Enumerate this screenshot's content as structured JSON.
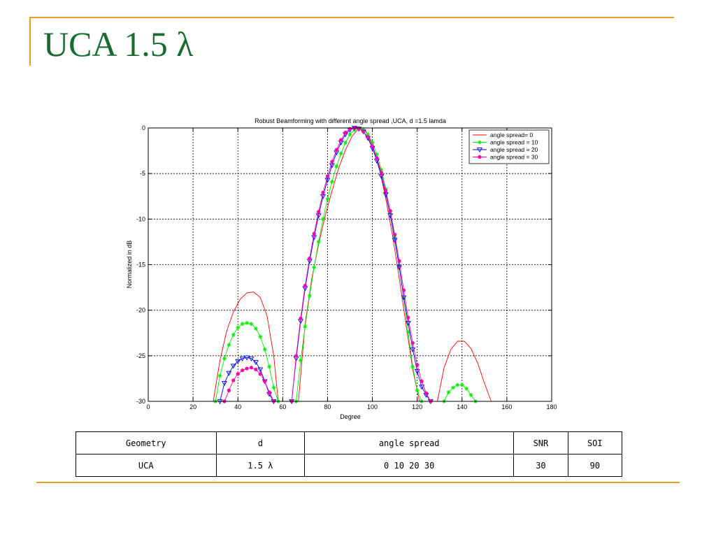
{
  "slide": {
    "title": "UCA 1.5 λ"
  },
  "chart_data": {
    "type": "line",
    "title": "Robust Beamforming with different angle spread ,UCA, d =1.5 lamda",
    "xlabel": "Degree",
    "ylabel": "Normalized in dB",
    "xlim": [
      0,
      180
    ],
    "ylim": [
      -30,
      0
    ],
    "xticks": [
      0,
      20,
      40,
      60,
      80,
      100,
      120,
      140,
      160,
      180
    ],
    "yticks": [
      0,
      -5,
      -10,
      -15,
      -20,
      -25,
      -30
    ],
    "grid": true,
    "legend_position": "top-right",
    "series": [
      {
        "name": "angle spread= 0",
        "color": "#ff0000",
        "marker": "none",
        "x": [
          29,
          32,
          35,
          38,
          41,
          44,
          47,
          50,
          53,
          56,
          58
        ],
        "y": [
          -30,
          -25.5,
          -22.3,
          -20.2,
          -18.8,
          -18.1,
          -18,
          -18.6,
          -20.6,
          -25,
          -30
        ],
        "x2": [
          67,
          70,
          73,
          76,
          79,
          82,
          85,
          88,
          91,
          94,
          97,
          100,
          103,
          106,
          109,
          112,
          115,
          118,
          121
        ],
        "y2": [
          -30,
          -21.5,
          -16.5,
          -12.8,
          -9.6,
          -6.9,
          -4.4,
          -2.4,
          -0.9,
          0,
          -0.3,
          -1.8,
          -4.3,
          -7.8,
          -11.8,
          -16.5,
          -21.5,
          -26.5,
          -30
        ],
        "x3": [
          129,
          132,
          135,
          138,
          141,
          144,
          147,
          150,
          153
        ],
        "y3": [
          -30,
          -26.3,
          -24.3,
          -23.4,
          -23.4,
          -24.2,
          -25.8,
          -28,
          -30
        ]
      },
      {
        "name": "angle spread = 10",
        "color": "#00ee00",
        "marker": "star",
        "x": [
          30,
          32,
          34,
          36,
          38,
          40,
          42,
          44,
          46,
          48,
          50,
          52,
          54,
          56,
          58
        ],
        "y": [
          -30,
          -27.2,
          -25.3,
          -23.8,
          -22.7,
          -21.9,
          -21.5,
          -21.4,
          -21.5,
          -22,
          -22.9,
          -24.3,
          -26.2,
          -28.5,
          -30
        ],
        "x2": [
          66,
          68,
          70,
          72,
          74,
          76,
          78,
          80,
          82,
          84,
          86,
          88,
          90,
          92,
          94,
          96,
          98,
          100,
          102,
          104,
          106,
          108,
          110,
          112,
          114,
          116,
          118,
          120,
          122
        ],
        "y2": [
          -30,
          -25.5,
          -21.8,
          -18.4,
          -15.3,
          -12.5,
          -10,
          -7.8,
          -5.9,
          -4.2,
          -2.8,
          -1.6,
          -0.7,
          -0.2,
          0,
          -0.2,
          -0.7,
          -1.6,
          -2.9,
          -4.6,
          -6.7,
          -9.2,
          -12,
          -15.2,
          -18.7,
          -22.4,
          -26.2,
          -28.8,
          -30
        ],
        "x3": [
          132,
          134,
          136,
          138,
          140,
          142,
          144,
          146
        ],
        "y3": [
          -30,
          -29,
          -28.5,
          -28.2,
          -28.2,
          -28.6,
          -29.3,
          -30
        ]
      },
      {
        "name": "angle spread = 20",
        "color": "#0000ff",
        "marker": "triangle",
        "x": [
          32,
          34,
          36,
          38,
          40,
          42,
          44,
          46,
          48,
          50,
          52,
          54,
          56
        ],
        "y": [
          -30,
          -28,
          -26.9,
          -26.1,
          -25.6,
          -25.3,
          -25.2,
          -25.3,
          -25.7,
          -26.5,
          -27.8,
          -29.2,
          -30
        ],
        "x2": [
          64,
          66,
          68,
          70,
          72,
          74,
          76,
          78,
          80,
          82,
          84,
          86,
          88,
          90,
          92,
          94,
          96,
          98,
          100,
          102,
          104,
          106,
          108,
          110,
          112,
          114,
          116,
          118,
          120,
          122,
          124,
          126
        ],
        "y2": [
          -30,
          -25.3,
          -21.2,
          -17.6,
          -14.6,
          -12,
          -9.6,
          -7.5,
          -5.7,
          -4.1,
          -2.7,
          -1.6,
          -0.7,
          -0.2,
          0,
          -0.1,
          -0.4,
          -1.1,
          -2.2,
          -3.6,
          -5.3,
          -7.3,
          -9.6,
          -12.3,
          -15.3,
          -18.6,
          -21.4,
          -24.3,
          -26.7,
          -28.4,
          -29.3,
          -30
        ],
        "x3": [],
        "y3": []
      },
      {
        "name": "angle spread = 30",
        "color": "#ff00aa",
        "marker": "dot",
        "x": [
          34,
          36,
          38,
          40,
          42,
          44,
          46,
          48,
          50,
          52,
          54,
          56
        ],
        "y": [
          -30,
          -28.8,
          -27.7,
          -27,
          -26.6,
          -26.4,
          -26.3,
          -26.5,
          -27,
          -27.8,
          -29,
          -30
        ],
        "x2": [
          64,
          66,
          68,
          70,
          72,
          74,
          76,
          78,
          80,
          82,
          84,
          86,
          88,
          90,
          92,
          94,
          96,
          98,
          100,
          102,
          104,
          106,
          108,
          110,
          112,
          114,
          116,
          118,
          120,
          122,
          124,
          126
        ],
        "y2": [
          -30,
          -25,
          -20.9,
          -17.3,
          -14.3,
          -11.6,
          -9.2,
          -7.1,
          -5.3,
          -3.7,
          -2.4,
          -1.3,
          -0.5,
          -0.1,
          0,
          -0.1,
          -0.4,
          -1,
          -2,
          -3.3,
          -4.9,
          -6.9,
          -9.1,
          -11.7,
          -14.6,
          -17.8,
          -20.8,
          -23.6,
          -26,
          -27.8,
          -29.1,
          -30
        ],
        "x3": [],
        "y3": []
      }
    ]
  },
  "table": {
    "headers": [
      "Geometry",
      "d",
      "angle spread",
      "SNR",
      "SOI"
    ],
    "row": [
      "UCA",
      "1.5 λ",
      "0 10 20 30",
      "30",
      "90"
    ]
  }
}
